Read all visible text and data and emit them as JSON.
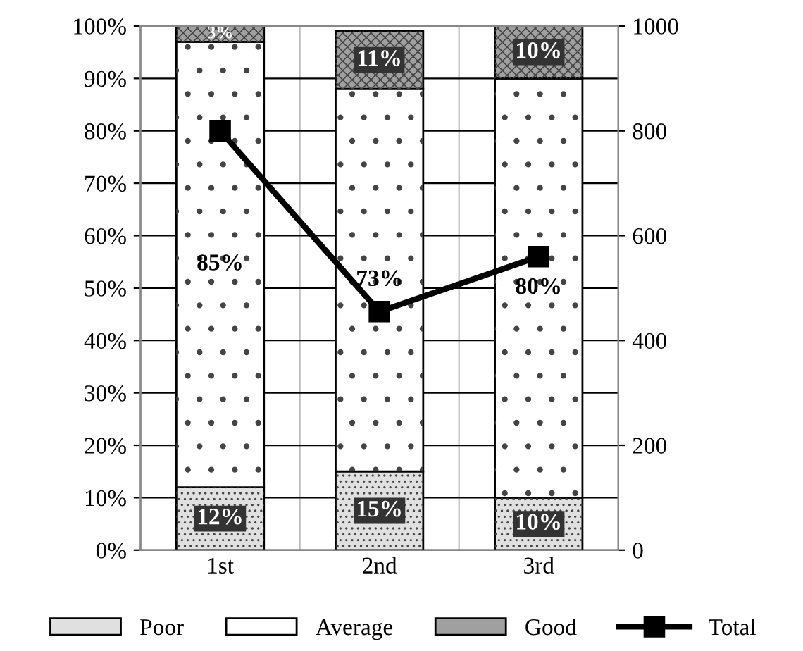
{
  "chart_data": {
    "type": "bar",
    "stacked": true,
    "categories": [
      "1st",
      "2nd",
      "3rd"
    ],
    "series": [
      {
        "name": "Poor",
        "color": "#e0e0e0",
        "values": [
          12,
          15,
          10
        ],
        "value_labels": [
          "12%",
          "15%",
          "10%"
        ]
      },
      {
        "name": "Average",
        "color": "#ffffff",
        "values": [
          85,
          73,
          80
        ],
        "value_labels": [
          "85%",
          "73%",
          "80%"
        ]
      },
      {
        "name": "Good",
        "color": "#a0a0a0",
        "values": [
          3,
          11,
          10
        ],
        "value_labels": [
          "3%",
          "11%",
          "10%"
        ]
      },
      {
        "name": "Total",
        "type": "line",
        "axis": "y2",
        "color": "#000000",
        "values": [
          800,
          455,
          560
        ],
        "marker": "square"
      }
    ],
    "ylim": [
      0,
      100
    ],
    "yticks": [
      {
        "value": 0,
        "label": "0%"
      },
      {
        "value": 10,
        "label": "10%"
      },
      {
        "value": 20,
        "label": "20%"
      },
      {
        "value": 30,
        "label": "30%"
      },
      {
        "value": 40,
        "label": "40%"
      },
      {
        "value": 50,
        "label": "50%"
      },
      {
        "value": 60,
        "label": "60%"
      },
      {
        "value": 70,
        "label": "70%"
      },
      {
        "value": 80,
        "label": "80%"
      },
      {
        "value": 90,
        "label": "90%"
      },
      {
        "value": 100,
        "label": "100%"
      }
    ],
    "y2lim": [
      0,
      1000
    ],
    "y2ticks": [
      0,
      200,
      400,
      600,
      800,
      1000
    ],
    "grid": true,
    "legend": "bottom"
  }
}
